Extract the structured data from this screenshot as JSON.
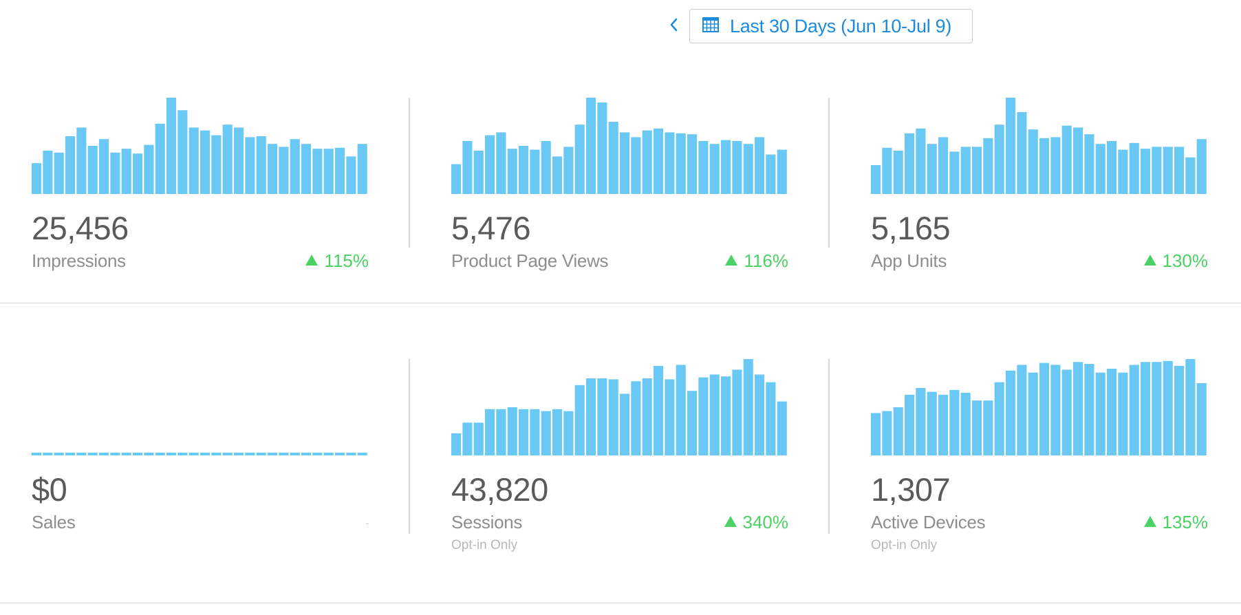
{
  "header": {
    "back_icon": "chevron-left-icon",
    "calendar_icon": "calendar-icon",
    "date_range_label": "Last 30 Days (Jun 10-Jul 9)",
    "accent_color": "#1d8bdc"
  },
  "colors": {
    "bar": "#6ac9f4",
    "positive": "#4cd164"
  },
  "metrics": [
    {
      "value": "25,456",
      "label": "Impressions",
      "change": "115%",
      "sub": ""
    },
    {
      "value": "5,476",
      "label": "Product Page Views",
      "change": "116%",
      "sub": ""
    },
    {
      "value": "5,165",
      "label": "App Units",
      "change": "130%",
      "sub": ""
    },
    {
      "value": "$0",
      "label": "Sales",
      "change": "-",
      "sub": ""
    },
    {
      "value": "43,820",
      "label": "Sessions",
      "change": "340%",
      "sub": "Opt-in Only"
    },
    {
      "value": "1,307",
      "label": "Active Devices",
      "change": "135%",
      "sub": "Opt-in Only"
    }
  ],
  "chart_data": [
    {
      "type": "bar",
      "name": "Impressions",
      "categories": [
        "1",
        "2",
        "3",
        "4",
        "5",
        "6",
        "7",
        "8",
        "9",
        "10",
        "11",
        "12",
        "13",
        "14",
        "15",
        "16",
        "17",
        "18",
        "19",
        "20",
        "21",
        "22",
        "23",
        "24",
        "25",
        "26",
        "27",
        "28",
        "29",
        "30"
      ],
      "values": [
        32,
        45,
        43,
        60,
        69,
        50,
        57,
        43,
        47,
        42,
        51,
        73,
        100,
        87,
        69,
        66,
        61,
        72,
        69,
        59,
        60,
        52,
        49,
        57,
        52,
        47,
        47,
        48,
        39,
        52
      ],
      "ylim": [
        0,
        100
      ]
    },
    {
      "type": "bar",
      "name": "Product Page Views",
      "categories": [
        "1",
        "2",
        "3",
        "4",
        "5",
        "6",
        "7",
        "8",
        "9",
        "10",
        "11",
        "12",
        "13",
        "14",
        "15",
        "16",
        "17",
        "18",
        "19",
        "20",
        "21",
        "22",
        "23",
        "24",
        "25",
        "26",
        "27",
        "28",
        "29",
        "30"
      ],
      "values": [
        31,
        55,
        45,
        61,
        64,
        47,
        50,
        46,
        55,
        39,
        49,
        72,
        100,
        95,
        75,
        64,
        59,
        66,
        68,
        64,
        63,
        62,
        55,
        52,
        56,
        55,
        52,
        59,
        41,
        46
      ],
      "ylim": [
        0,
        100
      ]
    },
    {
      "type": "bar",
      "name": "App Units",
      "categories": [
        "1",
        "2",
        "3",
        "4",
        "5",
        "6",
        "7",
        "8",
        "9",
        "10",
        "11",
        "12",
        "13",
        "14",
        "15",
        "16",
        "17",
        "18",
        "19",
        "20",
        "21",
        "22",
        "23",
        "24",
        "25",
        "26",
        "27",
        "28",
        "29",
        "30"
      ],
      "values": [
        30,
        48,
        45,
        63,
        68,
        52,
        59,
        44,
        49,
        49,
        58,
        72,
        100,
        85,
        67,
        58,
        59,
        71,
        69,
        62,
        52,
        55,
        46,
        53,
        47,
        49,
        49,
        49,
        38,
        57
      ],
      "ylim": [
        0,
        100
      ]
    },
    {
      "type": "bar",
      "name": "Sales",
      "categories": [
        "1",
        "2",
        "3",
        "4",
        "5",
        "6",
        "7",
        "8",
        "9",
        "10",
        "11",
        "12",
        "13",
        "14",
        "15",
        "16",
        "17",
        "18",
        "19",
        "20",
        "21",
        "22",
        "23",
        "24",
        "25",
        "26",
        "27",
        "28",
        "29",
        "30"
      ],
      "values": [
        0,
        0,
        0,
        0,
        0,
        0,
        0,
        0,
        0,
        0,
        0,
        0,
        0,
        0,
        0,
        0,
        0,
        0,
        0,
        0,
        0,
        0,
        0,
        0,
        0,
        0,
        0,
        0,
        0,
        0
      ],
      "ylim": [
        0,
        100
      ]
    },
    {
      "type": "bar",
      "name": "Sessions",
      "categories": [
        "1",
        "2",
        "3",
        "4",
        "5",
        "6",
        "7",
        "8",
        "9",
        "10",
        "11",
        "12",
        "13",
        "14",
        "15",
        "16",
        "17",
        "18",
        "19",
        "20",
        "21",
        "22",
        "23",
        "24",
        "25",
        "26",
        "27",
        "28",
        "29",
        "30"
      ],
      "values": [
        23,
        34,
        34,
        48,
        48,
        50,
        48,
        48,
        46,
        48,
        46,
        73,
        80,
        80,
        79,
        64,
        77,
        80,
        93,
        79,
        94,
        67,
        81,
        84,
        82,
        89,
        100,
        84,
        76,
        56
      ],
      "ylim": [
        0,
        100
      ]
    },
    {
      "type": "bar",
      "name": "Active Devices",
      "categories": [
        "1",
        "2",
        "3",
        "4",
        "5",
        "6",
        "7",
        "8",
        "9",
        "10",
        "11",
        "12",
        "13",
        "14",
        "15",
        "16",
        "17",
        "18",
        "19",
        "20",
        "21",
        "22",
        "23",
        "24",
        "25",
        "26",
        "27",
        "28",
        "29",
        "30"
      ],
      "values": [
        44,
        46,
        50,
        63,
        70,
        66,
        63,
        68,
        65,
        57,
        57,
        76,
        88,
        94,
        86,
        96,
        94,
        89,
        97,
        95,
        86,
        90,
        86,
        94,
        97,
        97,
        98,
        93,
        100,
        75
      ],
      "ylim": [
        0,
        100
      ]
    }
  ]
}
